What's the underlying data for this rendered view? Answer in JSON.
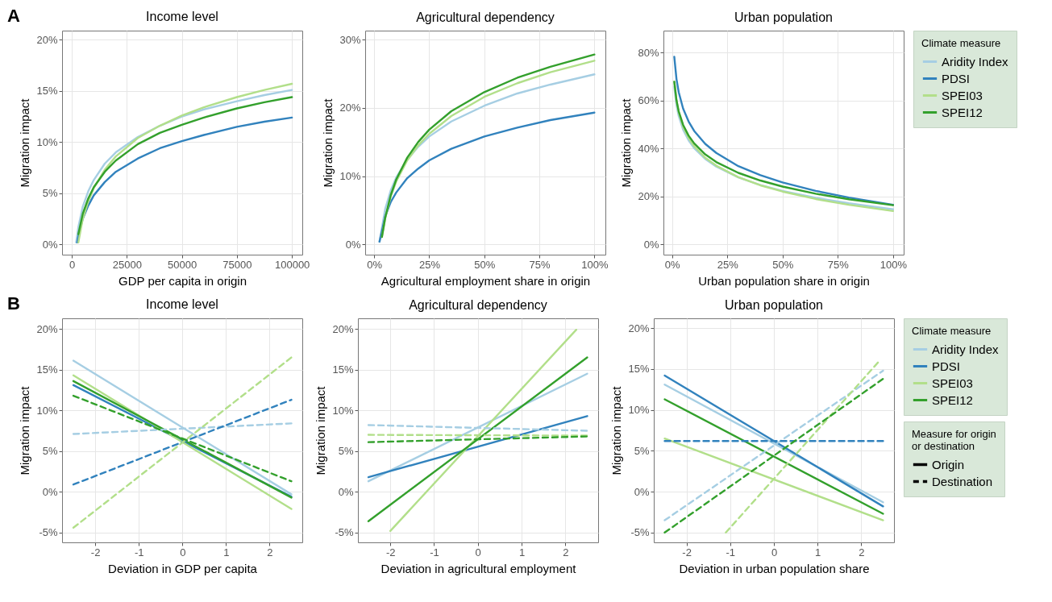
{
  "chart_data": [
    {
      "type": "line",
      "title": "Income level",
      "xlabel": "GDP per capita in origin",
      "ylabel": "Migration impact",
      "annotations": [
        "A"
      ],
      "xlim": [
        -4400,
        104700
      ],
      "ylim": [
        -1,
        20.9
      ],
      "xticks": [
        0,
        25000,
        50000,
        75000,
        100000
      ],
      "yticks": [
        {
          "value": 0,
          "label": "0%"
        },
        {
          "value": 5,
          "label": "5%"
        },
        {
          "value": 10,
          "label": "10%"
        },
        {
          "value": 15,
          "label": "15%"
        },
        {
          "value": 20,
          "label": "20%"
        }
      ],
      "grid": true,
      "series": [
        {
          "color": "#a6cee3",
          "x": [
            2000,
            3000,
            5000,
            7500,
            10000,
            15000,
            20000,
            30000,
            40000,
            50000,
            60000,
            75000,
            87500,
            100000
          ],
          "values": [
            0.2,
            1.7,
            3.7,
            5.2,
            6.3,
            7.9,
            9.0,
            10.5,
            11.6,
            12.5,
            13.2,
            14.0,
            14.6,
            15.1
          ]
        },
        {
          "color": "#3182bd",
          "x": [
            2500,
            3000,
            5000,
            7500,
            10000,
            15000,
            20000,
            30000,
            40000,
            50000,
            60000,
            75000,
            87500,
            100000
          ],
          "values": [
            0.2,
            0.8,
            2.5,
            3.8,
            4.8,
            6.1,
            7.1,
            8.4,
            9.4,
            10.1,
            10.7,
            11.5,
            12.0,
            12.4
          ]
        },
        {
          "color": "#b2df8a",
          "x": [
            3000,
            5000,
            7500,
            10000,
            15000,
            20000,
            30000,
            40000,
            50000,
            60000,
            75000,
            87500,
            100000
          ],
          "values": [
            0.2,
            2.5,
            4.2,
            5.5,
            7.3,
            8.6,
            10.4,
            11.6,
            12.6,
            13.4,
            14.4,
            15.1,
            15.7
          ]
        },
        {
          "color": "#33a02c",
          "x": [
            3000,
            5000,
            7500,
            10000,
            15000,
            20000,
            30000,
            40000,
            50000,
            60000,
            75000,
            87500,
            100000
          ],
          "values": [
            1.0,
            3.0,
            4.5,
            5.6,
            7.1,
            8.2,
            9.8,
            10.9,
            11.7,
            12.4,
            13.3,
            13.9,
            14.4
          ]
        }
      ]
    },
    {
      "type": "line",
      "title": "Agricultural dependency",
      "xlabel": "Agricultural employment share in origin",
      "ylabel": "Migration impact",
      "xlim": [
        -4.1,
        105
      ],
      "ylim": [
        -1.5,
        31.3
      ],
      "xticks": [
        {
          "value": 0,
          "label": "0%"
        },
        {
          "value": 25,
          "label": "25%"
        },
        {
          "value": 50,
          "label": "50%"
        },
        {
          "value": 75,
          "label": "75%"
        },
        {
          "value": 100,
          "label": "100%"
        }
      ],
      "yticks": [
        {
          "value": 0,
          "label": "0%"
        },
        {
          "value": 10,
          "label": "10%"
        },
        {
          "value": 20,
          "label": "20%"
        },
        {
          "value": 30,
          "label": "30%"
        }
      ],
      "grid": true,
      "series": [
        {
          "color": "#a6cee3",
          "x": [
            2.4,
            5,
            7.5,
            10,
            15,
            20,
            25,
            35,
            50,
            65,
            80,
            100
          ],
          "values": [
            0.4,
            5.2,
            7.9,
            9.8,
            12.4,
            14.3,
            15.8,
            18.0,
            20.3,
            22.1,
            23.4,
            24.9
          ]
        },
        {
          "color": "#3182bd",
          "x": [
            2.4,
            5,
            7.5,
            10,
            15,
            20,
            25,
            35,
            50,
            65,
            80,
            100
          ],
          "values": [
            0.4,
            4.1,
            6.2,
            7.6,
            9.7,
            11.1,
            12.3,
            14.0,
            15.8,
            17.1,
            18.2,
            19.3
          ]
        },
        {
          "color": "#b2df8a",
          "x": [
            3.5,
            5,
            7.5,
            10,
            15,
            20,
            25,
            35,
            50,
            65,
            80,
            100
          ],
          "values": [
            1.1,
            3.8,
            7.0,
            9.2,
            12.3,
            14.5,
            16.2,
            18.8,
            21.6,
            23.6,
            25.2,
            26.9
          ]
        },
        {
          "color": "#33a02c",
          "x": [
            3.5,
            5,
            7.5,
            10,
            15,
            20,
            25,
            35,
            50,
            65,
            80,
            100
          ],
          "values": [
            1.1,
            3.9,
            7.2,
            9.5,
            12.7,
            15.0,
            16.8,
            19.5,
            22.3,
            24.4,
            26.0,
            27.8
          ]
        }
      ]
    },
    {
      "type": "line",
      "title": "Urban population",
      "xlabel": "Urban population share in origin",
      "ylabel": "Migration impact",
      "legend_title": "Climate measure",
      "legend": "right",
      "xlim": [
        -3.9,
        104.8
      ],
      "ylim": [
        -4.2,
        89.2
      ],
      "xticks": [
        {
          "value": 0,
          "label": "0%"
        },
        {
          "value": 25,
          "label": "25%"
        },
        {
          "value": 50,
          "label": "50%"
        },
        {
          "value": 75,
          "label": "75%"
        },
        {
          "value": 100,
          "label": "100%"
        }
      ],
      "yticks": [
        {
          "value": 0,
          "label": "0%"
        },
        {
          "value": 20,
          "label": "20%"
        },
        {
          "value": 40,
          "label": "40%"
        },
        {
          "value": 60,
          "label": "60%"
        },
        {
          "value": 80,
          "label": "80%"
        }
      ],
      "grid": true,
      "series": [
        {
          "name": "Aridity Index",
          "color": "#a6cee3",
          "x": [
            1,
            2,
            3,
            5,
            7.5,
            10,
            15,
            20,
            30,
            40,
            50,
            65,
            80,
            100
          ],
          "values": [
            65.8,
            58.1,
            53.6,
            47.9,
            43.4,
            40.2,
            35.7,
            32.5,
            28.0,
            24.8,
            22.4,
            19.5,
            17.2,
            14.7
          ]
        },
        {
          "name": "PDSI",
          "color": "#3182bd",
          "x": [
            1,
            2,
            3,
            5,
            7.5,
            10,
            15,
            20,
            30,
            40,
            50,
            65,
            80,
            100
          ],
          "values": [
            78.3,
            69.0,
            63.6,
            56.7,
            51.3,
            47.4,
            42.0,
            38.2,
            32.7,
            28.9,
            25.9,
            22.4,
            19.6,
            16.6
          ]
        },
        {
          "name": "SPEI03",
          "color": "#b2df8a",
          "x": [
            1,
            2,
            3,
            5,
            7.5,
            10,
            15,
            20,
            30,
            40,
            50,
            65,
            80,
            100
          ],
          "values": [
            68.0,
            59.9,
            55.1,
            49.1,
            44.4,
            41.0,
            36.2,
            32.9,
            28.1,
            24.7,
            22.1,
            19.0,
            16.6,
            14.0
          ]
        },
        {
          "name": "SPEI12",
          "color": "#33a02c",
          "x": [
            1,
            2,
            3,
            5,
            7.5,
            10,
            15,
            20,
            30,
            40,
            50,
            65,
            80,
            100
          ],
          "values": [
            67.9,
            60.2,
            55.6,
            49.9,
            45.4,
            42.2,
            37.6,
            34.4,
            29.9,
            26.7,
            24.2,
            21.2,
            18.9,
            16.4
          ]
        }
      ]
    },
    {
      "type": "line",
      "title": "Income level",
      "xlabel": "Deviation in GDP per capita",
      "ylabel": "Migration impact",
      "annotations": [
        "B"
      ],
      "xlim": [
        -2.76,
        2.75
      ],
      "ylim": [
        -6.2,
        21.3
      ],
      "xticks": [
        -2,
        -1,
        0,
        1,
        2
      ],
      "yticks": [
        {
          "value": -5,
          "label": "-5%"
        },
        {
          "value": 0,
          "label": "0%"
        },
        {
          "value": 5,
          "label": "5%"
        },
        {
          "value": 10,
          "label": "10%"
        },
        {
          "value": 15,
          "label": "15%"
        },
        {
          "value": 20,
          "label": "20%"
        }
      ],
      "grid": true,
      "series": [
        {
          "color": "#a6cee3",
          "line_style": "solid",
          "x": [
            -2.5,
            2.5
          ],
          "values": [
            16.1,
            -0.3
          ]
        },
        {
          "color": "#3182bd",
          "line_style": "solid",
          "x": [
            -2.5,
            2.5
          ],
          "values": [
            13.1,
            -0.6
          ]
        },
        {
          "color": "#b2df8a",
          "line_style": "solid",
          "x": [
            -2.5,
            2.5
          ],
          "values": [
            14.3,
            -2.1
          ]
        },
        {
          "color": "#33a02c",
          "line_style": "solid",
          "x": [
            -2.5,
            2.5
          ],
          "values": [
            13.6,
            -0.7
          ]
        },
        {
          "color": "#a6cee3",
          "line_style": "dashed",
          "x": [
            -2.5,
            2.5
          ],
          "values": [
            7.1,
            8.4
          ]
        },
        {
          "color": "#3182bd",
          "line_style": "dashed",
          "x": [
            -2.5,
            2.5
          ],
          "values": [
            0.9,
            11.3
          ]
        },
        {
          "color": "#b2df8a",
          "line_style": "dashed",
          "x": [
            -2.5,
            2.5
          ],
          "values": [
            -4.4,
            16.5
          ]
        },
        {
          "color": "#33a02c",
          "line_style": "dashed",
          "x": [
            -2.5,
            2.5
          ],
          "values": [
            11.8,
            1.3
          ]
        }
      ]
    },
    {
      "type": "line",
      "title": "Agricultural dependency",
      "xlabel": "Deviation in agricultural employment",
      "ylabel": "Migration impact",
      "xlim": [
        -2.74,
        2.75
      ],
      "ylim": [
        -6.2,
        21.3
      ],
      "xticks": [
        -2,
        -1,
        0,
        1,
        2
      ],
      "yticks": [
        {
          "value": -5,
          "label": "-5%"
        },
        {
          "value": 0,
          "label": "0%"
        },
        {
          "value": 5,
          "label": "5%"
        },
        {
          "value": 10,
          "label": "10%"
        },
        {
          "value": 15,
          "label": "15%"
        },
        {
          "value": 20,
          "label": "20%"
        }
      ],
      "grid": true,
      "series": [
        {
          "color": "#a6cee3",
          "line_style": "solid",
          "x": [
            -2.5,
            2.5
          ],
          "values": [
            1.3,
            14.5
          ]
        },
        {
          "color": "#3182bd",
          "line_style": "solid",
          "x": [
            -2.5,
            2.5
          ],
          "values": [
            1.8,
            9.3
          ]
        },
        {
          "color": "#b2df8a",
          "line_style": "solid",
          "x": [
            -2.0,
            2.25
          ],
          "values": [
            -4.8,
            19.9
          ]
        },
        {
          "color": "#33a02c",
          "line_style": "solid",
          "x": [
            -2.5,
            2.5
          ],
          "values": [
            -3.6,
            16.5
          ]
        },
        {
          "color": "#a6cee3",
          "line_style": "dashed",
          "x": [
            -2.5,
            2.5
          ],
          "values": [
            8.2,
            7.5
          ]
        },
        {
          "color": "#b2df8a",
          "line_style": "dashed",
          "x": [
            -2.5,
            2.5
          ],
          "values": [
            7.0,
            6.9
          ]
        },
        {
          "color": "#33a02c",
          "line_style": "dashed",
          "x": [
            -2.5,
            2.5
          ],
          "values": [
            6.1,
            6.8
          ]
        }
      ]
    },
    {
      "type": "line",
      "title": "Urban population",
      "xlabel": "Deviation in urban population share",
      "ylabel": "Migration impact",
      "legend_title": "Climate measure",
      "legend": "right",
      "annotations": [
        "Measure for origin or destination",
        "Origin",
        "Destination"
      ],
      "xlim": [
        -2.75,
        2.75
      ],
      "ylim": [
        -6.2,
        21.2
      ],
      "xticks": [
        -2,
        -1,
        0,
        1,
        2
      ],
      "yticks": [
        {
          "value": -5,
          "label": "-5%"
        },
        {
          "value": 0,
          "label": "0%"
        },
        {
          "value": 5,
          "label": "5%"
        },
        {
          "value": 10,
          "label": "10%"
        },
        {
          "value": 15,
          "label": "15%"
        },
        {
          "value": 20,
          "label": "20%"
        }
      ],
      "grid": true,
      "series": [
        {
          "name": "Aridity Index",
          "color": "#a6cee3",
          "line_style": "solid",
          "x": [
            -2.5,
            2.5
          ],
          "values": [
            13.1,
            -1.3
          ]
        },
        {
          "name": "PDSI",
          "color": "#3182bd",
          "line_style": "solid",
          "x": [
            -2.5,
            2.5
          ],
          "values": [
            14.2,
            -1.8
          ]
        },
        {
          "name": "SPEI03",
          "color": "#b2df8a",
          "line_style": "solid",
          "x": [
            -2.5,
            2.5
          ],
          "values": [
            6.5,
            -3.5
          ]
        },
        {
          "name": "SPEI12",
          "color": "#33a02c",
          "line_style": "solid",
          "x": [
            -2.5,
            2.5
          ],
          "values": [
            11.3,
            -2.7
          ]
        },
        {
          "name": "Aridity Index",
          "color": "#a6cee3",
          "line_style": "dashed",
          "x": [
            -2.5,
            2.5
          ],
          "values": [
            -3.5,
            14.8
          ]
        },
        {
          "name": "PDSI",
          "color": "#3182bd",
          "line_style": "dashed",
          "x": [
            -2.5,
            2.5
          ],
          "values": [
            6.2,
            6.2
          ]
        },
        {
          "name": "SPEI03",
          "color": "#b2df8a",
          "line_style": "dashed",
          "x": [
            -1.1,
            2.4
          ],
          "values": [
            -5.0,
            15.9
          ]
        },
        {
          "name": "SPEI12",
          "color": "#33a02c",
          "line_style": "dashed",
          "x": [
            -2.5,
            2.5
          ],
          "values": [
            -5.0,
            13.8
          ]
        }
      ]
    }
  ]
}
